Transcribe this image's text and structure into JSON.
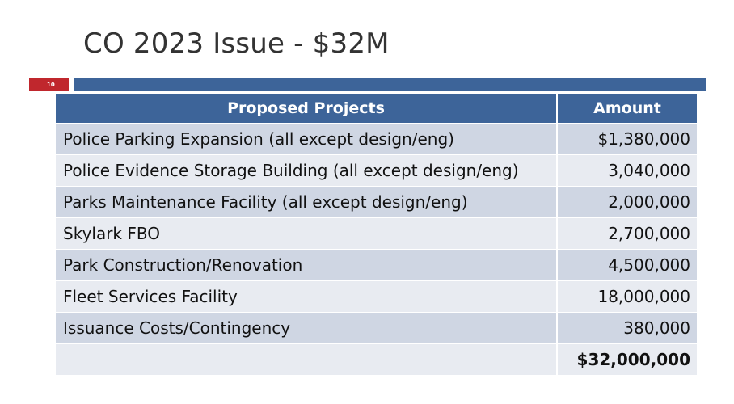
{
  "slide": {
    "title": "CO 2023 Issue - $32M",
    "page_number": "10"
  },
  "table": {
    "headers": {
      "project": "Proposed Projects",
      "amount": "Amount"
    },
    "rows": [
      {
        "project": "Police Parking Expansion (all except design/eng)",
        "amount": "$1,380,000"
      },
      {
        "project": "Police Evidence Storage Building (all except design/eng)",
        "amount": "3,040,000"
      },
      {
        "project": "Parks Maintenance Facility (all except design/eng)",
        "amount": "2,000,000"
      },
      {
        "project": "Skylark FBO",
        "amount": "2,700,000"
      },
      {
        "project": "Park Construction/Renovation",
        "amount": "4,500,000"
      },
      {
        "project": "Fleet Services Facility",
        "amount": "18,000,000"
      },
      {
        "project": "Issuance Costs/Contingency",
        "amount": "380,000"
      }
    ],
    "total": {
      "project": "",
      "amount": "$32,000,000"
    }
  },
  "colors": {
    "accent_blue": "#3d6499",
    "page_red": "#c0272d",
    "row_dark": "#cfd6e3",
    "row_light": "#e8ebf1"
  }
}
